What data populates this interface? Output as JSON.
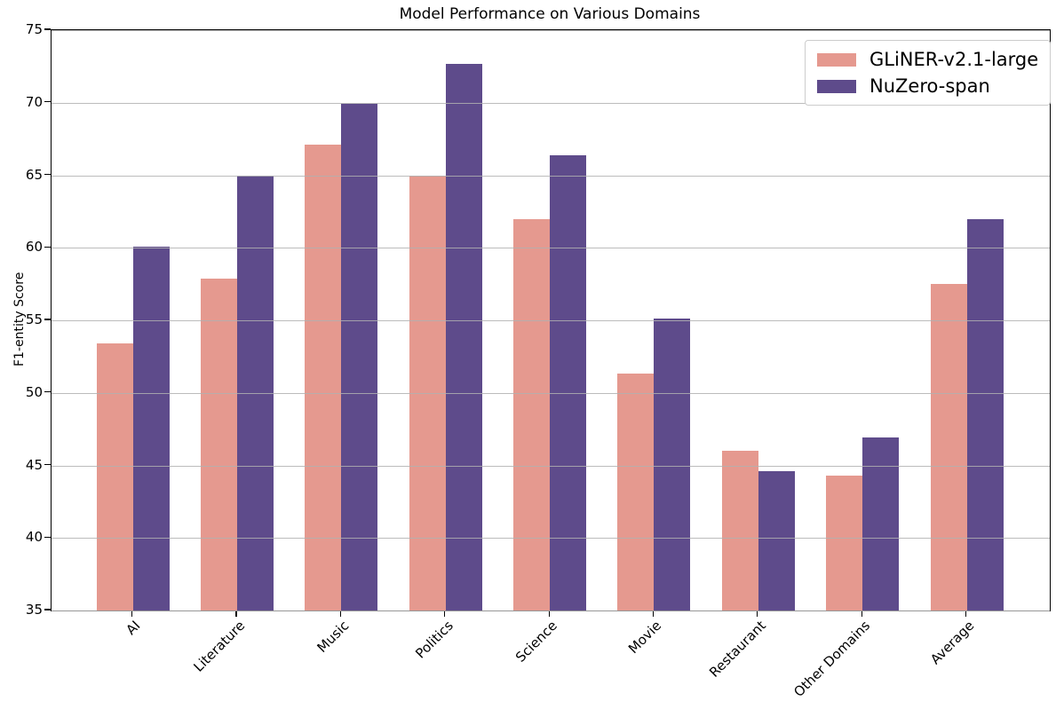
{
  "chart_data": {
    "type": "bar",
    "title": "Model Performance on Various Domains",
    "xlabel": "",
    "ylabel": "F1-entity Score",
    "ylim": [
      35,
      75
    ],
    "yticks": [
      35,
      40,
      45,
      50,
      55,
      60,
      65,
      70,
      75
    ],
    "grid": "horizontal",
    "grid_above_bars": true,
    "legend_position": "upper-right",
    "xtick_rotation_deg": 45,
    "categories": [
      "AI",
      "Literature",
      "Music",
      "Politics",
      "Science",
      "Movie",
      "Restaurant",
      "Other Domains",
      "Average"
    ],
    "series": [
      {
        "name": "GLiNER-v2.1-large",
        "color": "#E5998F",
        "values": [
          53.4,
          57.9,
          67.1,
          65.0,
          62.0,
          51.3,
          46.0,
          44.3,
          57.5
        ]
      },
      {
        "name": "NuZero-span",
        "color": "#5E4B8B",
        "values": [
          60.1,
          65.0,
          69.9,
          72.7,
          66.4,
          55.1,
          44.6,
          46.9,
          62.0
        ]
      }
    ]
  },
  "colors": {
    "background": "#ffffff",
    "grid": "#b0b0b0",
    "axis": "#000000",
    "legend_border": "#cccccc",
    "text": "#000000"
  }
}
